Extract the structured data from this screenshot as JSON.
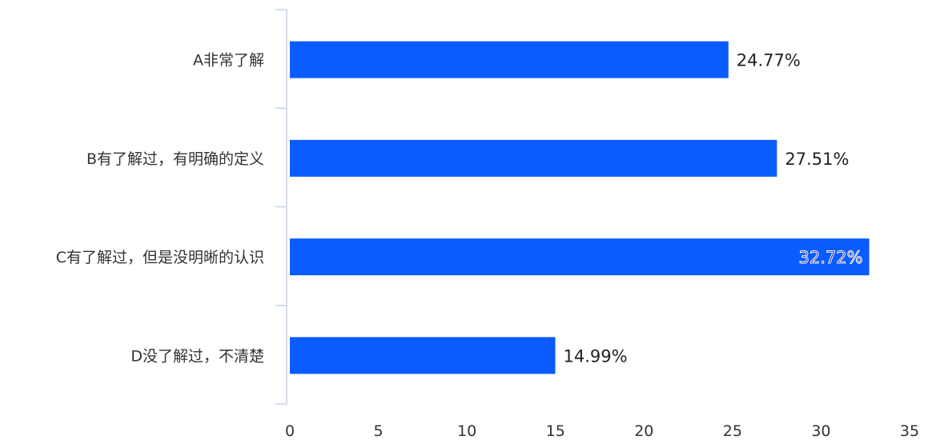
{
  "chart_data": {
    "type": "bar",
    "orientation": "horizontal",
    "categories": [
      "A非常了解",
      "B有了解过，有明确的定义",
      "C有了解过，但是没明晰的认识",
      "D没了解过，不清楚"
    ],
    "values": [
      24.77,
      27.51,
      32.72,
      14.99
    ],
    "data_labels": [
      "24.77%",
      "27.51%",
      "32.72%",
      "14.99%"
    ],
    "xlim": [
      0,
      35
    ],
    "xticks": [
      0,
      5,
      10,
      15,
      20,
      25,
      30,
      35
    ],
    "grid": false,
    "legend": "none",
    "bar_color": "#0a5cff",
    "axis_color": "#c8d3e0"
  }
}
